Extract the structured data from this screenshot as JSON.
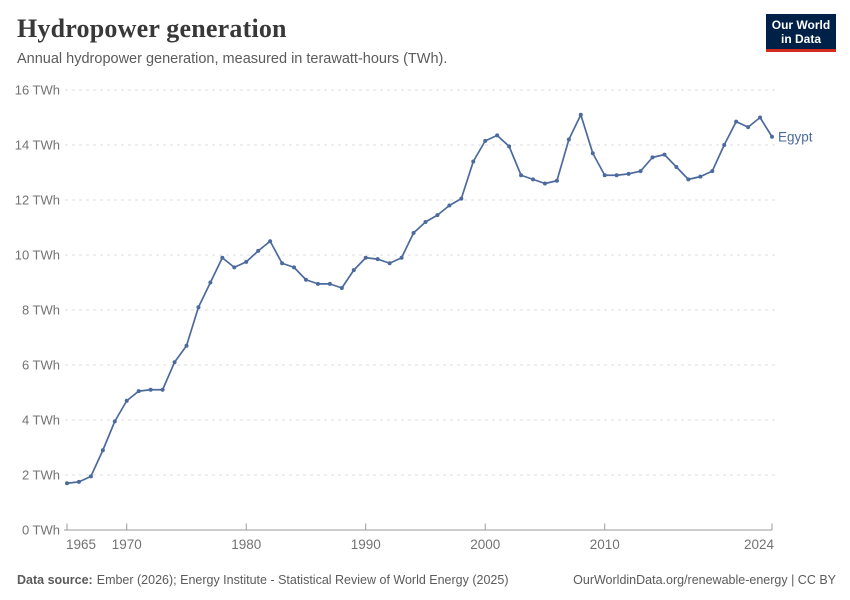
{
  "header": {
    "title": "Hydropower generation",
    "subtitle": "Annual hydropower generation, measured in terawatt-hours (TWh)."
  },
  "logo": {
    "line1": "Our World",
    "line2": "in Data",
    "bg_color": "#002147",
    "stripe_color": "#d42b21"
  },
  "footer": {
    "source_label": "Data source:",
    "source_text": "Ember (2026); Energy Institute - Statistical Review of World Energy (2025)",
    "right": "OurWorldinData.org/renewable-energy | CC BY"
  },
  "chart_data": {
    "type": "line",
    "title": "Hydropower generation",
    "subtitle": "Annual hydropower generation, measured in terawatt-hours (TWh).",
    "unit": "TWh",
    "x_range": [
      1965,
      2024
    ],
    "ylim": [
      0,
      16
    ],
    "grid": "horizontal-dashed",
    "legend_position": "end-of-line-label",
    "colors": {
      "series": "#4c6a9c",
      "grid": "#dcdcdc",
      "axis": "#999999",
      "tick_label": "#737373"
    },
    "y_ticks": [
      {
        "value": 0,
        "label": "0 TWh"
      },
      {
        "value": 2,
        "label": "2 TWh"
      },
      {
        "value": 4,
        "label": "4 TWh"
      },
      {
        "value": 6,
        "label": "6 TWh"
      },
      {
        "value": 8,
        "label": "8 TWh"
      },
      {
        "value": 10,
        "label": "10 TWh"
      },
      {
        "value": 12,
        "label": "12 TWh"
      },
      {
        "value": 14,
        "label": "14 TWh"
      },
      {
        "value": 16,
        "label": "16 TWh"
      }
    ],
    "x_ticks": [
      {
        "value": 1965,
        "label": "1965",
        "align": "start"
      },
      {
        "value": 1970,
        "label": "1970"
      },
      {
        "value": 1980,
        "label": "1980"
      },
      {
        "value": 1990,
        "label": "1990"
      },
      {
        "value": 2000,
        "label": "2000"
      },
      {
        "value": 2010,
        "label": "2010"
      },
      {
        "value": 2024,
        "label": "2024",
        "align": "end"
      }
    ],
    "series": [
      {
        "name": "Egypt",
        "color": "#4c6a9c",
        "start_year": 1965,
        "values": [
          1.7,
          1.75,
          1.95,
          2.9,
          3.95,
          4.7,
          5.05,
          5.1,
          5.1,
          6.1,
          6.7,
          8.1,
          9.0,
          9.9,
          9.55,
          9.75,
          10.15,
          10.5,
          9.7,
          9.55,
          9.1,
          8.95,
          8.95,
          8.8,
          9.45,
          9.9,
          9.85,
          9.7,
          9.9,
          10.8,
          11.2,
          11.45,
          11.8,
          12.05,
          13.4,
          14.15,
          14.35,
          13.95,
          12.9,
          12.75,
          12.6,
          12.7,
          14.2,
          15.1,
          13.7,
          12.9,
          12.9,
          12.95,
          13.05,
          13.55,
          13.65,
          13.2,
          12.75,
          12.85,
          13.05,
          14.0,
          14.85,
          14.65,
          15.0,
          14.3
        ]
      }
    ]
  }
}
